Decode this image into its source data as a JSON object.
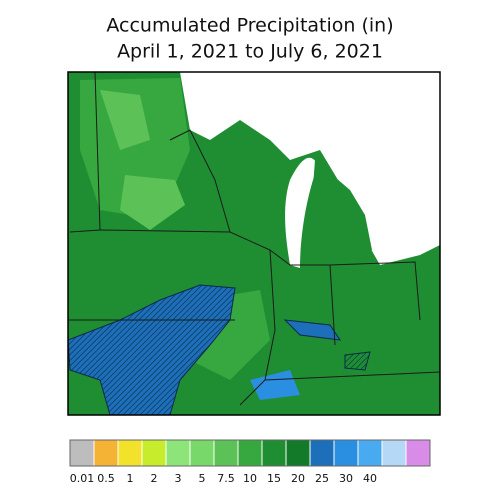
{
  "header": {
    "title": "Accumulated Precipitation (in)",
    "subtitle": "April 1, 2021 to July 6, 2021"
  },
  "legend": {
    "colors": [
      "#bdbdbd",
      "#f5b335",
      "#f2e22c",
      "#c7ec2c",
      "#8de57a",
      "#79d86a",
      "#5cc156",
      "#37a83f",
      "#1f8e32",
      "#137a2a",
      "#1c6fb8",
      "#2a8fe0",
      "#4aaaf0",
      "#b4d8f5",
      "#d88ce8"
    ],
    "labels": [
      "0.01",
      "0.5",
      "1",
      "2",
      "3",
      "5",
      "7.5",
      "10",
      "15",
      "20",
      "25",
      "30",
      "40",
      null,
      null
    ]
  }
}
